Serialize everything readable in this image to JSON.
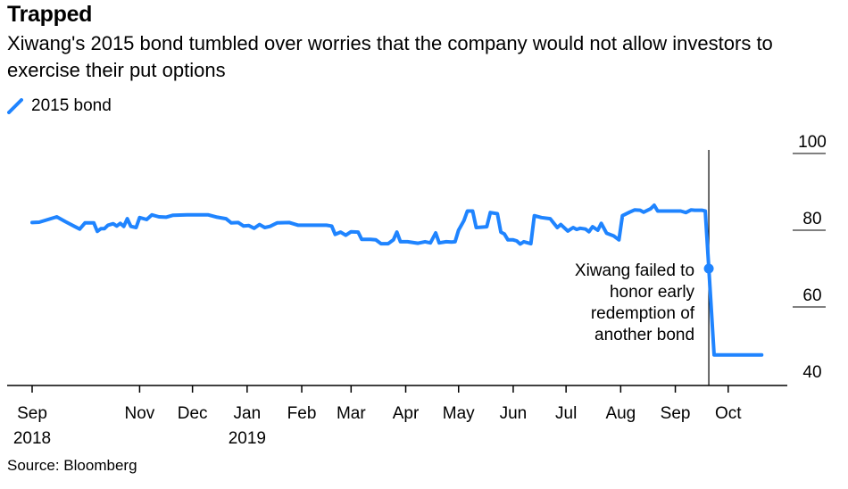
{
  "title": "Trapped",
  "subtitle": "Xiwang's 2015 bond tumbled over worries that the company would not allow investors to exercise their put options",
  "source": "Source: Bloomberg",
  "chart_data": {
    "type": "line",
    "title": "Trapped",
    "series": [
      {
        "name": "2015 bond",
        "color": "#1f84ff",
        "points": [
          [
            "2018-09-01",
            82.0
          ],
          [
            "2018-09-05",
            82.1
          ],
          [
            "2018-09-10",
            82.8
          ],
          [
            "2018-09-15",
            83.5
          ],
          [
            "2018-09-20",
            82.2
          ],
          [
            "2018-09-25",
            81.0
          ],
          [
            "2018-09-28",
            80.3
          ],
          [
            "2018-10-01",
            81.9
          ],
          [
            "2018-10-06",
            81.9
          ],
          [
            "2018-10-08",
            79.7
          ],
          [
            "2018-10-10",
            80.4
          ],
          [
            "2018-10-12",
            80.4
          ],
          [
            "2018-10-14",
            81.3
          ],
          [
            "2018-10-17",
            81.7
          ],
          [
            "2018-10-19",
            81.1
          ],
          [
            "2018-10-21",
            81.8
          ],
          [
            "2018-10-23",
            81.0
          ],
          [
            "2018-10-25",
            83.0
          ],
          [
            "2018-10-27",
            81.0
          ],
          [
            "2018-10-30",
            80.7
          ],
          [
            "2018-11-01",
            83.3
          ],
          [
            "2018-11-05",
            82.8
          ],
          [
            "2018-11-08",
            84.0
          ],
          [
            "2018-11-12",
            83.5
          ],
          [
            "2018-11-16",
            83.4
          ],
          [
            "2018-11-20",
            83.9
          ],
          [
            "2018-11-28",
            84.0
          ],
          [
            "2018-12-05",
            84.0
          ],
          [
            "2018-12-10",
            84.0
          ],
          [
            "2018-12-15",
            83.4
          ],
          [
            "2018-12-20",
            83.0
          ],
          [
            "2018-12-23",
            81.9
          ],
          [
            "2018-12-27",
            82.0
          ],
          [
            "2018-12-30",
            81.1
          ],
          [
            "2019-01-02",
            81.2
          ],
          [
            "2019-01-05",
            80.5
          ],
          [
            "2019-01-08",
            81.5
          ],
          [
            "2019-01-11",
            80.7
          ],
          [
            "2019-01-14",
            81.0
          ],
          [
            "2019-01-18",
            81.9
          ],
          [
            "2019-01-25",
            82.0
          ],
          [
            "2019-01-30",
            81.3
          ],
          [
            "2019-02-05",
            81.3
          ],
          [
            "2019-02-15",
            81.3
          ],
          [
            "2019-02-18",
            81.1
          ],
          [
            "2019-02-20",
            78.9
          ],
          [
            "2019-02-23",
            79.5
          ],
          [
            "2019-02-26",
            78.7
          ],
          [
            "2019-03-01",
            79.6
          ],
          [
            "2019-03-05",
            79.5
          ],
          [
            "2019-03-07",
            77.6
          ],
          [
            "2019-03-12",
            77.6
          ],
          [
            "2019-03-15",
            77.5
          ],
          [
            "2019-03-18",
            76.5
          ],
          [
            "2019-03-22",
            76.5
          ],
          [
            "2019-03-25",
            77.5
          ],
          [
            "2019-03-27",
            79.5
          ],
          [
            "2019-03-29",
            77.0
          ],
          [
            "2019-04-02",
            77.0
          ],
          [
            "2019-04-08",
            76.6
          ],
          [
            "2019-04-12",
            77.0
          ],
          [
            "2019-04-15",
            76.7
          ],
          [
            "2019-04-18",
            79.3
          ],
          [
            "2019-04-20",
            76.7
          ],
          [
            "2019-04-24",
            77.0
          ],
          [
            "2019-04-27",
            76.9
          ],
          [
            "2019-04-29",
            77.0
          ],
          [
            "2019-05-01",
            80.0
          ],
          [
            "2019-05-04",
            82.5
          ],
          [
            "2019-05-06",
            85.0
          ],
          [
            "2019-05-09",
            85.0
          ],
          [
            "2019-05-11",
            80.7
          ],
          [
            "2019-05-17",
            80.9
          ],
          [
            "2019-05-19",
            84.6
          ],
          [
            "2019-05-23",
            84.3
          ],
          [
            "2019-05-25",
            79.5
          ],
          [
            "2019-05-27",
            79.0
          ],
          [
            "2019-05-29",
            77.5
          ],
          [
            "2019-06-01",
            77.5
          ],
          [
            "2019-06-03",
            77.2
          ],
          [
            "2019-06-05",
            76.4
          ],
          [
            "2019-06-07",
            77.0
          ],
          [
            "2019-06-11",
            76.5
          ],
          [
            "2019-06-13",
            83.8
          ],
          [
            "2019-06-17",
            83.3
          ],
          [
            "2019-06-22",
            83.0
          ],
          [
            "2019-06-26",
            80.7
          ],
          [
            "2019-06-28",
            81.5
          ],
          [
            "2019-07-02",
            79.8
          ],
          [
            "2019-07-05",
            80.7
          ],
          [
            "2019-07-07",
            80.2
          ],
          [
            "2019-07-09",
            80.5
          ],
          [
            "2019-07-12",
            80.3
          ],
          [
            "2019-07-14",
            79.6
          ],
          [
            "2019-07-16",
            80.9
          ],
          [
            "2019-07-19",
            80.0
          ],
          [
            "2019-07-21",
            81.8
          ],
          [
            "2019-07-24",
            79.2
          ],
          [
            "2019-07-28",
            78.5
          ],
          [
            "2019-07-31",
            77.5
          ],
          [
            "2019-08-02",
            83.8
          ],
          [
            "2019-08-06",
            84.7
          ],
          [
            "2019-08-09",
            85.3
          ],
          [
            "2019-08-12",
            85.2
          ],
          [
            "2019-08-14",
            84.7
          ],
          [
            "2019-08-18",
            85.6
          ],
          [
            "2019-08-20",
            86.5
          ],
          [
            "2019-08-22",
            85.0
          ],
          [
            "2019-08-28",
            85.0
          ],
          [
            "2019-09-04",
            85.0
          ],
          [
            "2019-09-07",
            84.6
          ],
          [
            "2019-09-10",
            85.3
          ],
          [
            "2019-09-12",
            85.2
          ],
          [
            "2019-09-16",
            85.2
          ],
          [
            "2019-09-18",
            85.0
          ],
          [
            "2019-09-20",
            70.0
          ],
          [
            "2019-09-23",
            47.5
          ],
          [
            "2019-09-27",
            47.5
          ],
          [
            "2019-10-20",
            47.5
          ]
        ]
      }
    ],
    "x_ticks": [
      {
        "date": "2018-09-01",
        "label": "Sep",
        "sublabel": "2018"
      },
      {
        "date": "2018-11-01",
        "label": "Nov",
        "sublabel": ""
      },
      {
        "date": "2018-12-01",
        "label": "Dec",
        "sublabel": ""
      },
      {
        "date": "2019-01-01",
        "label": "Jan",
        "sublabel": "2019"
      },
      {
        "date": "2019-02-01",
        "label": "Feb",
        "sublabel": ""
      },
      {
        "date": "2019-03-01",
        "label": "Mar",
        "sublabel": ""
      },
      {
        "date": "2019-04-01",
        "label": "Apr",
        "sublabel": ""
      },
      {
        "date": "2019-05-01",
        "label": "May",
        "sublabel": ""
      },
      {
        "date": "2019-06-01",
        "label": "Jun",
        "sublabel": ""
      },
      {
        "date": "2019-07-01",
        "label": "Jul",
        "sublabel": ""
      },
      {
        "date": "2019-08-01",
        "label": "Aug",
        "sublabel": ""
      },
      {
        "date": "2019-09-01",
        "label": "Sep",
        "sublabel": ""
      },
      {
        "date": "2019-10-01",
        "label": "Oct",
        "sublabel": ""
      }
    ],
    "y_ticks": [
      100,
      80,
      60,
      40
    ],
    "ylim": [
      40,
      100
    ],
    "xlim": [
      "2018-09-01",
      "2019-10-31"
    ],
    "y_axis_side": "right",
    "grid": false,
    "legend_placement": "top-left",
    "annotation": {
      "date": "2019-09-20",
      "value": 70.0,
      "lines": [
        "Xiwang failed to",
        "honor early",
        "redemption of",
        "another bond"
      ]
    }
  }
}
